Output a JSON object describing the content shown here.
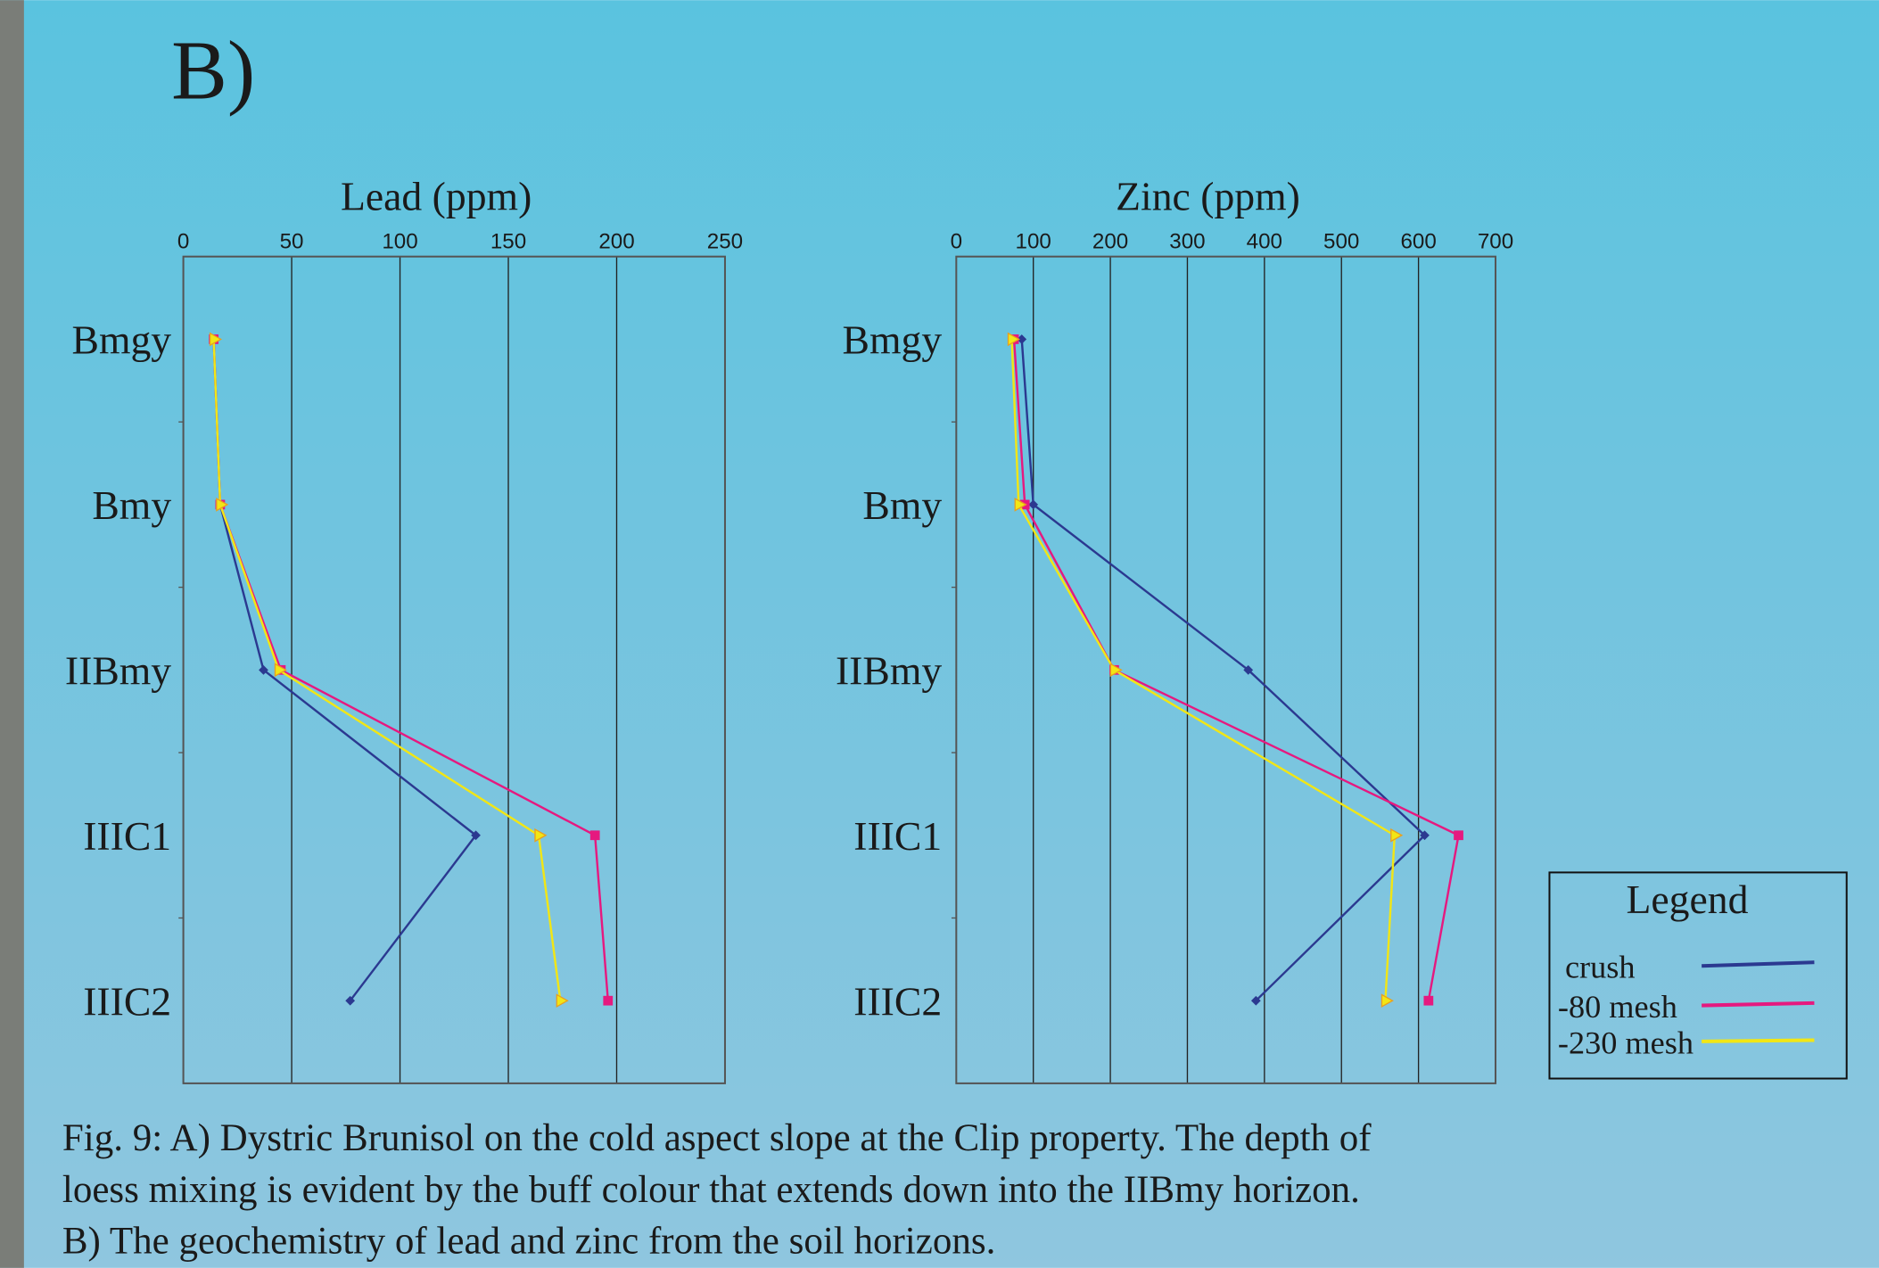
{
  "panel_label": "B)",
  "legend": {
    "title": "Legend"
  },
  "caption": [
    "Fig. 9: A) Dystric Brunisol on  the cold aspect slope at the Clip property. The depth of",
    "loess mixing is evident by the buff colour that extends down into the IIBmy horizon.",
    "B) The geochemistry of lead and zinc from the soil horizons."
  ],
  "chart_data": [
    {
      "type": "line",
      "title": "Lead (ppm)",
      "categories": [
        "Bmgy",
        "Bmy",
        "IIBmy",
        "IIIC1",
        "IIIC2"
      ],
      "xlim": [
        0,
        250
      ],
      "xticks": [
        0,
        50,
        100,
        150,
        200,
        250
      ],
      "grid": true,
      "series": [
        {
          "name": "crush",
          "color": "#2b3990",
          "marker": "diamond",
          "values": [
            14,
            17,
            37,
            135,
            77
          ]
        },
        {
          "name": "-80 mesh",
          "color": "#e6197f",
          "marker": "square",
          "values": [
            14,
            17,
            45,
            190,
            196
          ]
        },
        {
          "name": "-230 mesh",
          "color": "#f2e615",
          "marker": "triangle",
          "values": [
            14,
            17,
            44,
            164,
            174
          ]
        }
      ]
    },
    {
      "type": "line",
      "title": "Zinc (ppm)",
      "categories": [
        "Bmgy",
        "Bmy",
        "IIBmy",
        "IIIC1",
        "IIIC2"
      ],
      "xlim": [
        0,
        700
      ],
      "xticks": [
        0,
        100,
        200,
        300,
        400,
        500,
        600,
        700
      ],
      "grid": true,
      "series": [
        {
          "name": "crush",
          "color": "#2b3990",
          "marker": "diamond",
          "values": [
            85,
            100,
            379,
            608,
            389
          ]
        },
        {
          "name": "-80 mesh",
          "color": "#e6197f",
          "marker": "square",
          "values": [
            75,
            89,
            205,
            652,
            613
          ]
        },
        {
          "name": "-230 mesh",
          "color": "#f2e615",
          "marker": "triangle",
          "values": [
            72,
            81,
            205,
            569,
            557
          ]
        }
      ]
    }
  ]
}
